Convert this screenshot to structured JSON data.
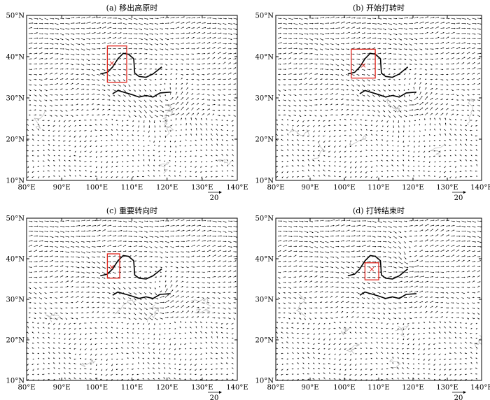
{
  "panels": [
    {
      "title": "(a) 移出高原时",
      "box": {
        "lon": [
          103.0,
          108.5
        ],
        "lat": [
          33.8,
          42.6
        ]
      },
      "center": {
        "lon": 104.3,
        "lat": 38.5
      },
      "cyclone": [
        {
          "lon": 120.0,
          "lat": 29.5,
          "r": 8
        }
      ]
    },
    {
      "title": "(b) 开始打转时",
      "box": {
        "lon": [
          102.0,
          109.0
        ],
        "lat": [
          34.8,
          41.8
        ]
      },
      "center": {
        "lon": 105.5,
        "lat": 38.0
      },
      "cyclone": [
        {
          "lon": 119.5,
          "lat": 30.0,
          "r": 7
        }
      ]
    },
    {
      "title": "(c) 重要转向时",
      "box": {
        "lon": [
          103.0,
          106.5
        ],
        "lat": [
          35.2,
          41.2
        ]
      },
      "center": {
        "lon": 104.3,
        "lat": 38.0
      },
      "cyclone": [
        {
          "lon": 118.0,
          "lat": 31.5,
          "r": 6
        }
      ]
    },
    {
      "title": "(d) 打转结束时",
      "box": {
        "lon": [
          106.0,
          110.0
        ],
        "lat": [
          34.8,
          39.0
        ]
      },
      "center": {
        "lon": 108.0,
        "lat": 37.5
      },
      "cyclone": [
        {
          "lon": 118.5,
          "lat": 40.0,
          "r": 6
        }
      ]
    }
  ],
  "axes": {
    "x_ticks": [
      "80°E",
      "90°E",
      "100°E",
      "110°E",
      "120°E",
      "130°E",
      "140°E"
    ],
    "y_ticks": [
      "50°N",
      "40°N",
      "30°N",
      "20°N",
      "10°N"
    ],
    "lon_range": [
      80,
      140
    ],
    "lat_range": [
      10,
      50
    ]
  },
  "reference_vector": "20",
  "colors": {
    "box": "#e0261e",
    "vectors": "#000000",
    "grid_faint": "#b9b9b9"
  }
}
